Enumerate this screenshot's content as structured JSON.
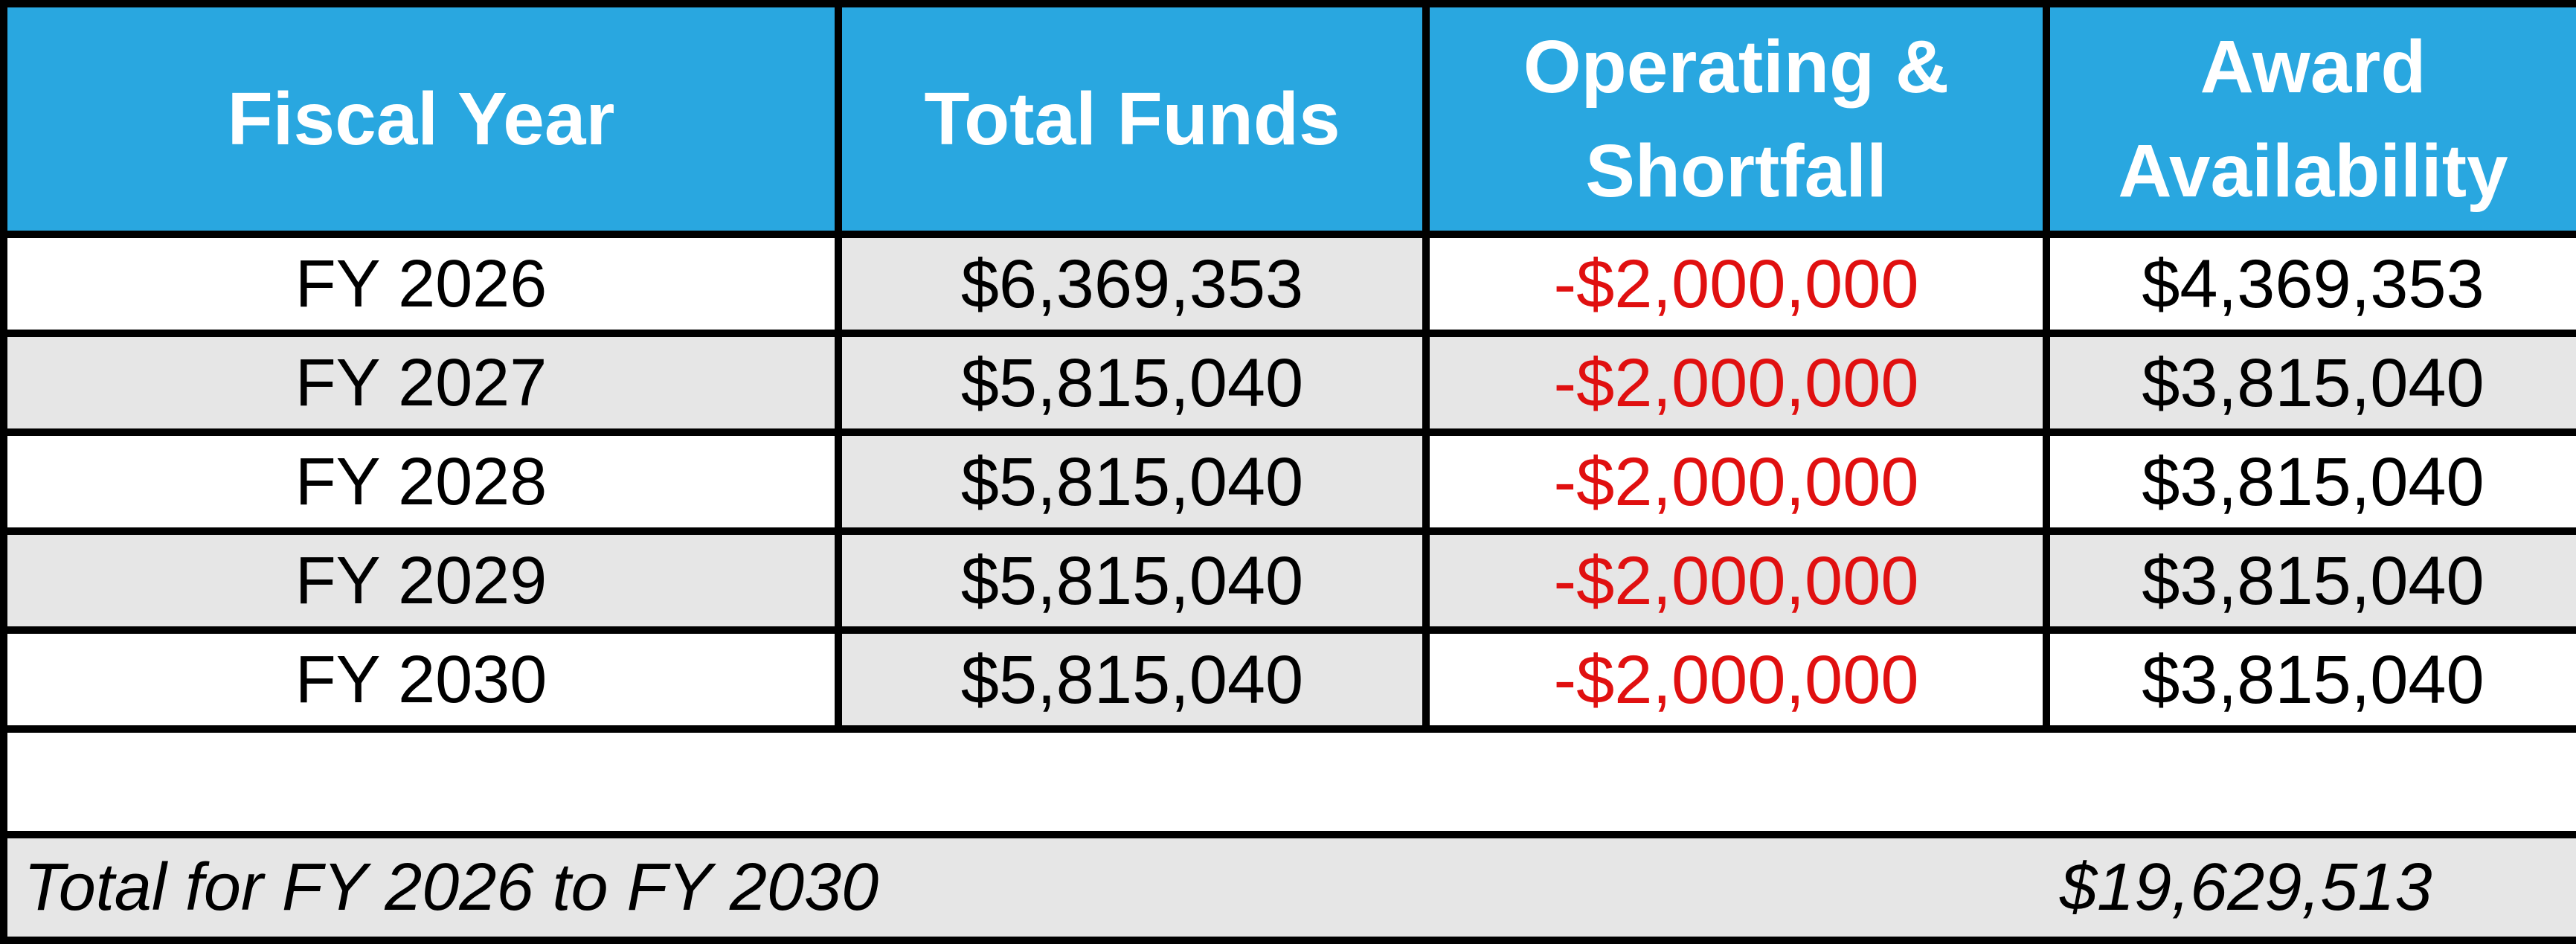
{
  "table": {
    "headers": {
      "fiscal_year": "Fiscal Year",
      "total_funds": "Total Funds",
      "operating_line1": "Operating &",
      "operating_line2": "Shortfall",
      "award_line1": "Award",
      "award_line2": "Availability"
    },
    "rows": [
      {
        "fiscal_year": "FY 2026",
        "total_funds": "$6,369,353",
        "operating_shortfall": "-$2,000,000",
        "award_availability": "$4,369,353"
      },
      {
        "fiscal_year": "FY 2027",
        "total_funds": "$5,815,040",
        "operating_shortfall": "-$2,000,000",
        "award_availability": "$3,815,040"
      },
      {
        "fiscal_year": "FY 2028",
        "total_funds": "$5,815,040",
        "operating_shortfall": "-$2,000,000",
        "award_availability": "$3,815,040"
      },
      {
        "fiscal_year": "FY 2029",
        "total_funds": "$5,815,040",
        "operating_shortfall": "-$2,000,000",
        "award_availability": "$3,815,040"
      },
      {
        "fiscal_year": "FY 2030",
        "total_funds": "$5,815,040",
        "operating_shortfall": "-$2,000,000",
        "award_availability": "$3,815,040"
      }
    ],
    "total": {
      "label": "Total for FY 2026 to FY 2030",
      "value": "$19,629,513"
    },
    "colors": {
      "header_background": "#29a7e0",
      "header_text": "#ffffff",
      "negative_text": "#e01010",
      "shaded_cell": "#e6e6e6",
      "border": "#000000"
    }
  }
}
